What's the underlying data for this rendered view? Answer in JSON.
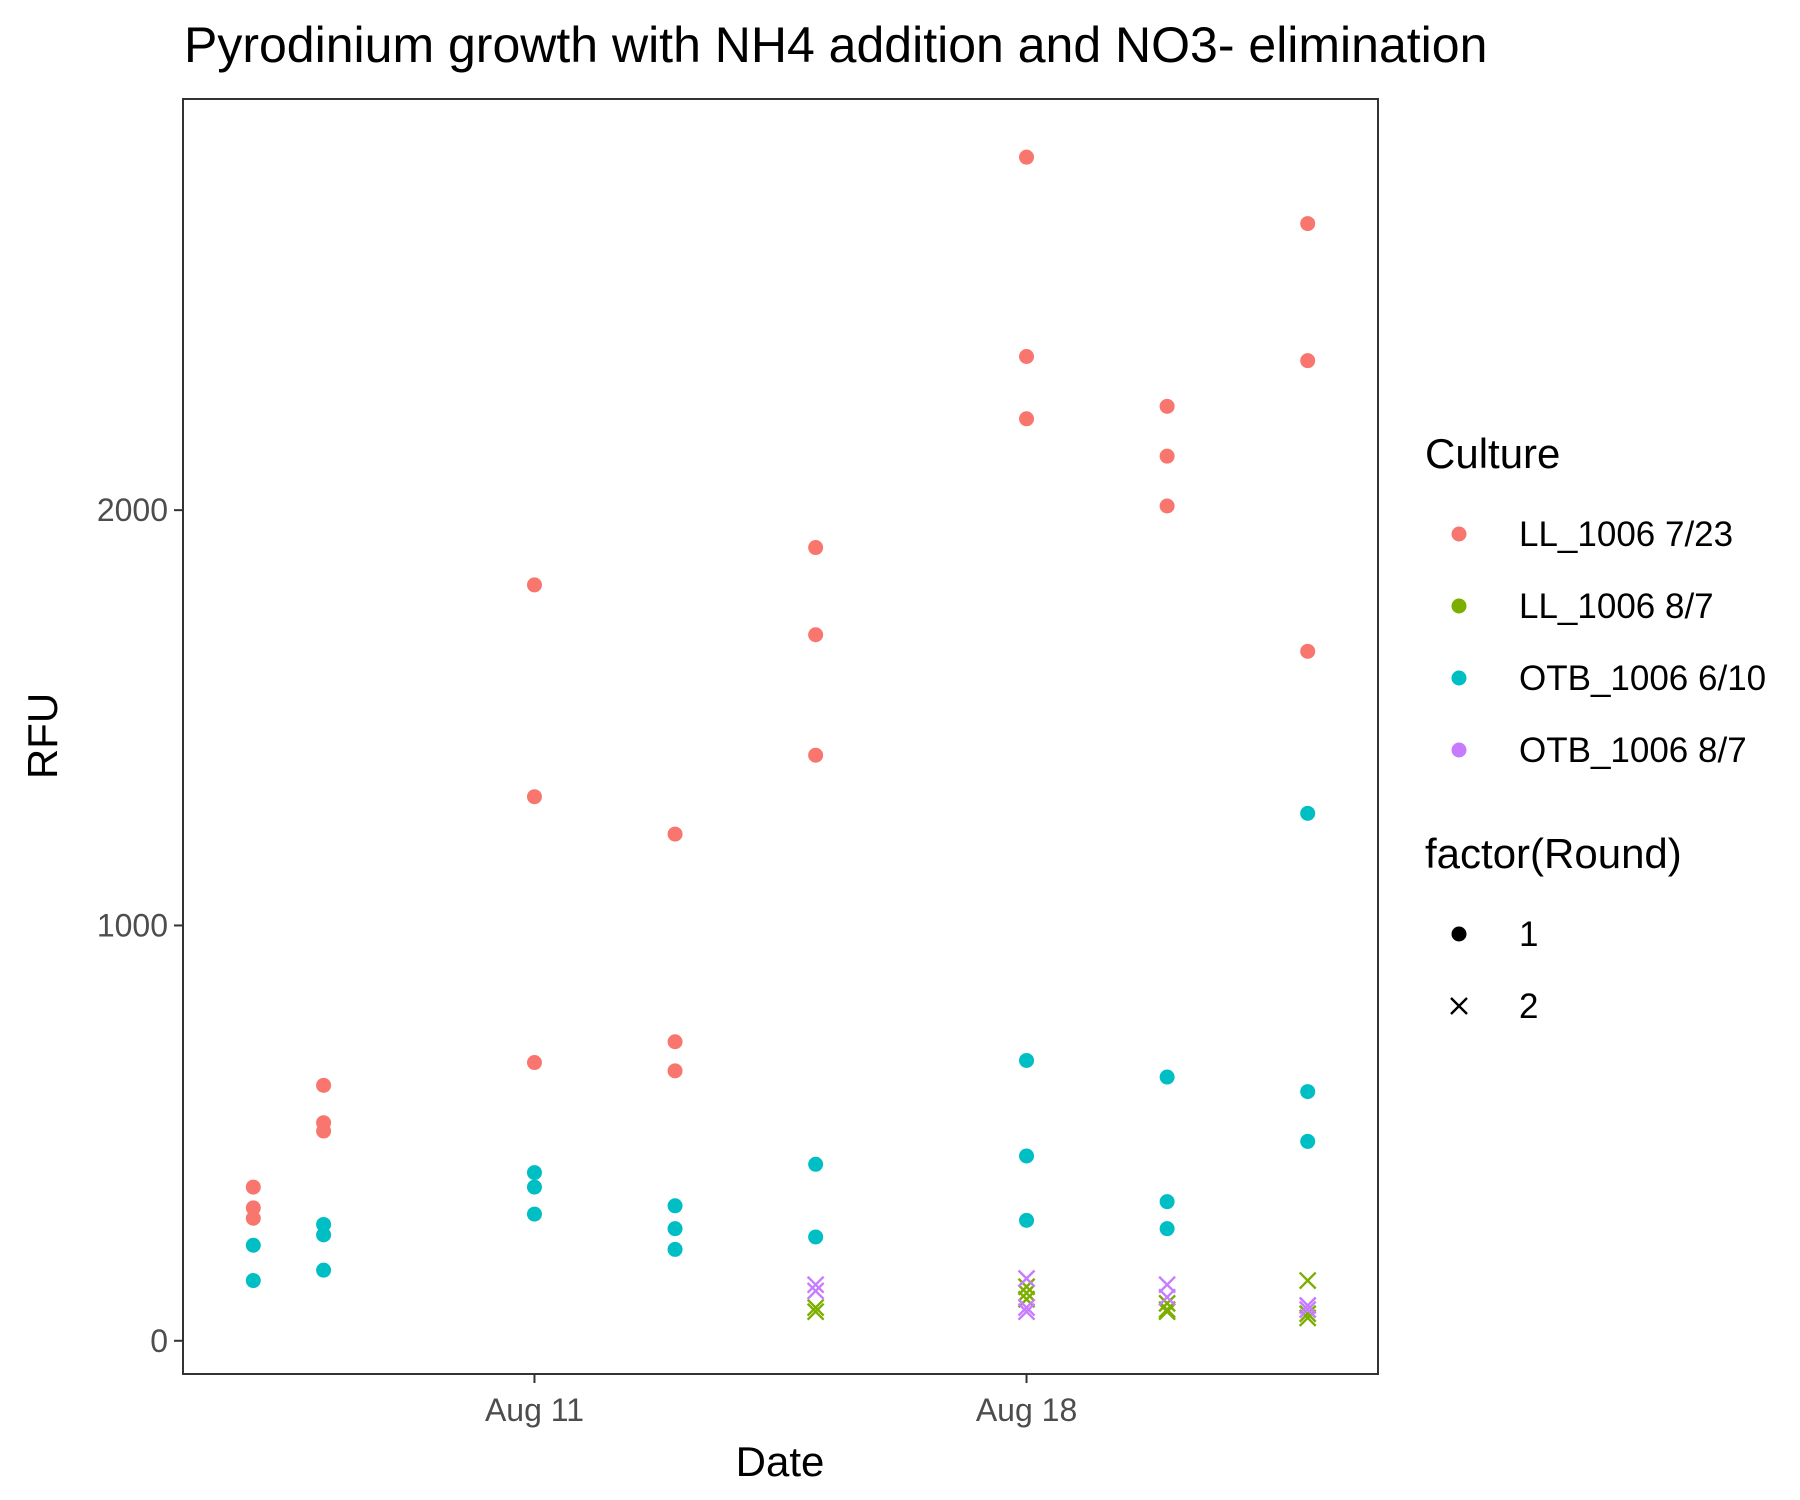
{
  "chart_data": {
    "type": "scatter",
    "title": "Pyrodinium growth with NH4 addition and NO3- elimination",
    "xlabel": "Date",
    "ylabel": "RFU",
    "x_ticks": [
      "Aug 11",
      "Aug 18"
    ],
    "y_ticks": [
      0,
      1000,
      2000
    ],
    "xlim": [
      "2019-08-06",
      "2019-08-23"
    ],
    "ylim": [
      -80,
      2990
    ],
    "grid": false,
    "legend_position": "right",
    "legends": [
      {
        "title": "Culture",
        "entries": [
          {
            "label": "LL_1006 7/23",
            "color": "#F8766D"
          },
          {
            "label": "LL_1006 8/7",
            "color": "#7CAE00"
          },
          {
            "label": "OTB_1006 6/10",
            "color": "#00BFC4"
          },
          {
            "label": "OTB_1006 8/7",
            "color": "#C77CFF"
          }
        ]
      },
      {
        "title": "factor(Round)",
        "entries": [
          {
            "label": "1",
            "shape": "circle"
          },
          {
            "label": "2",
            "shape": "cross"
          }
        ]
      }
    ],
    "series": [
      {
        "culture": "LL_1006 7/23",
        "round": "1",
        "color": "#F8766D",
        "shape": "circle",
        "points": [
          {
            "x": "2019-08-07",
            "y": 370
          },
          {
            "x": "2019-08-07",
            "y": 320
          },
          {
            "x": "2019-08-07",
            "y": 295
          },
          {
            "x": "2019-08-08",
            "y": 615
          },
          {
            "x": "2019-08-08",
            "y": 525
          },
          {
            "x": "2019-08-08",
            "y": 505
          },
          {
            "x": "2019-08-11",
            "y": 1820
          },
          {
            "x": "2019-08-11",
            "y": 1310
          },
          {
            "x": "2019-08-11",
            "y": 670
          },
          {
            "x": "2019-08-13",
            "y": 1220
          },
          {
            "x": "2019-08-13",
            "y": 720
          },
          {
            "x": "2019-08-13",
            "y": 650
          },
          {
            "x": "2019-08-15",
            "y": 1910
          },
          {
            "x": "2019-08-15",
            "y": 1700
          },
          {
            "x": "2019-08-15",
            "y": 1410
          },
          {
            "x": "2019-08-18",
            "y": 2850
          },
          {
            "x": "2019-08-18",
            "y": 2370
          },
          {
            "x": "2019-08-18",
            "y": 2220
          },
          {
            "x": "2019-08-20",
            "y": 2250
          },
          {
            "x": "2019-08-20",
            "y": 2130
          },
          {
            "x": "2019-08-20",
            "y": 2010
          },
          {
            "x": "2019-08-22",
            "y": 2690
          },
          {
            "x": "2019-08-22",
            "y": 2360
          },
          {
            "x": "2019-08-22",
            "y": 1660
          }
        ]
      },
      {
        "culture": "OTB_1006 6/10",
        "round": "1",
        "color": "#00BFC4",
        "shape": "circle",
        "points": [
          {
            "x": "2019-08-07",
            "y": 230
          },
          {
            "x": "2019-08-07",
            "y": 145
          },
          {
            "x": "2019-08-08",
            "y": 280
          },
          {
            "x": "2019-08-08",
            "y": 255
          },
          {
            "x": "2019-08-08",
            "y": 170
          },
          {
            "x": "2019-08-11",
            "y": 405
          },
          {
            "x": "2019-08-11",
            "y": 370
          },
          {
            "x": "2019-08-11",
            "y": 305
          },
          {
            "x": "2019-08-13",
            "y": 325
          },
          {
            "x": "2019-08-13",
            "y": 270
          },
          {
            "x": "2019-08-13",
            "y": 220
          },
          {
            "x": "2019-08-15",
            "y": 425
          },
          {
            "x": "2019-08-15",
            "y": 250
          },
          {
            "x": "2019-08-18",
            "y": 675
          },
          {
            "x": "2019-08-18",
            "y": 445
          },
          {
            "x": "2019-08-18",
            "y": 290
          },
          {
            "x": "2019-08-20",
            "y": 635
          },
          {
            "x": "2019-08-20",
            "y": 335
          },
          {
            "x": "2019-08-20",
            "y": 270
          },
          {
            "x": "2019-08-22",
            "y": 1270
          },
          {
            "x": "2019-08-22",
            "y": 600
          },
          {
            "x": "2019-08-22",
            "y": 480
          }
        ]
      },
      {
        "culture": "LL_1006 8/7",
        "round": "2",
        "color": "#7CAE00",
        "shape": "cross",
        "points": [
          {
            "x": "2019-08-15",
            "y": 80
          },
          {
            "x": "2019-08-15",
            "y": 70
          },
          {
            "x": "2019-08-18",
            "y": 130
          },
          {
            "x": "2019-08-18",
            "y": 115
          },
          {
            "x": "2019-08-18",
            "y": 100
          },
          {
            "x": "2019-08-20",
            "y": 90
          },
          {
            "x": "2019-08-20",
            "y": 75
          },
          {
            "x": "2019-08-20",
            "y": 70
          },
          {
            "x": "2019-08-22",
            "y": 145
          },
          {
            "x": "2019-08-22",
            "y": 65
          },
          {
            "x": "2019-08-22",
            "y": 55
          }
        ]
      },
      {
        "culture": "OTB_1006 8/7",
        "round": "2",
        "color": "#C77CFF",
        "shape": "cross",
        "points": [
          {
            "x": "2019-08-15",
            "y": 135
          },
          {
            "x": "2019-08-15",
            "y": 120
          },
          {
            "x": "2019-08-18",
            "y": 150
          },
          {
            "x": "2019-08-18",
            "y": 80
          },
          {
            "x": "2019-08-18",
            "y": 70
          },
          {
            "x": "2019-08-20",
            "y": 135
          },
          {
            "x": "2019-08-20",
            "y": 105
          },
          {
            "x": "2019-08-22",
            "y": 85
          },
          {
            "x": "2019-08-22",
            "y": 75
          }
        ]
      }
    ]
  }
}
